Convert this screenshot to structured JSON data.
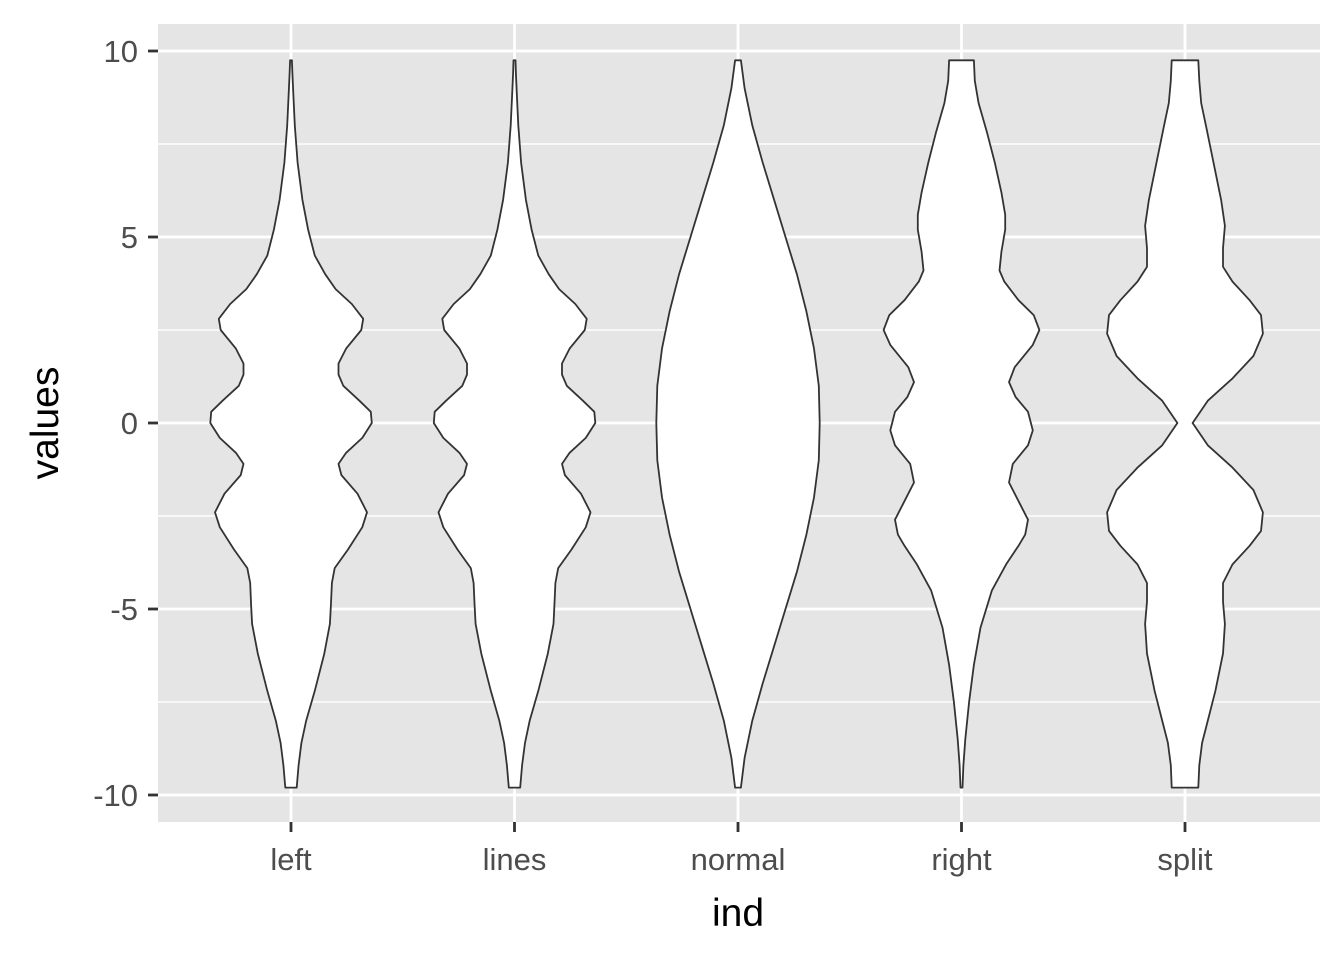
{
  "chart_data": {
    "type": "violin",
    "title": "",
    "xlabel": "ind",
    "ylabel": "values",
    "ylim": [
      -10.7,
      10.7
    ],
    "y_ticks": [
      -10,
      -5,
      0,
      5,
      10
    ],
    "y_tick_labels": [
      "-10",
      "-5",
      "0",
      "5",
      "10"
    ],
    "y_minor_ticks": [
      -7.5,
      -2.5,
      2.5,
      7.5
    ],
    "categories": [
      "left",
      "lines",
      "normal",
      "right",
      "split"
    ],
    "grid": true,
    "legend": "none",
    "colors": {
      "panel_background": "#e5e5e5",
      "grid": "#ffffff",
      "violin_fill": "#ffffff",
      "violin_outline": "#333333",
      "tick_label": "#4d4d4d",
      "axis_ticks": "#333333"
    },
    "series": [
      {
        "category": "left",
        "y_range": [
          -9.8,
          9.75
        ],
        "profile_y": [
          -9.8,
          -9.2,
          -8.6,
          -8,
          -7.2,
          -6.2,
          -5.4,
          -4.9,
          -4.3,
          -3.9,
          -3.4,
          -2.8,
          -2.4,
          -1.9,
          -1.4,
          -1.1,
          -0.8,
          -0.4,
          0,
          0.3,
          0.6,
          1,
          1.3,
          1.6,
          2,
          2.5,
          2.8,
          3.2,
          3.6,
          4,
          4.5,
          5.2,
          6,
          7,
          8,
          8.8,
          9.4,
          9.75
        ],
        "half_width": [
          0.06,
          0.08,
          0.11,
          0.16,
          0.25,
          0.35,
          0.41,
          0.42,
          0.43,
          0.46,
          0.6,
          0.75,
          0.8,
          0.7,
          0.53,
          0.5,
          0.58,
          0.75,
          0.85,
          0.84,
          0.72,
          0.55,
          0.5,
          0.5,
          0.58,
          0.74,
          0.76,
          0.64,
          0.47,
          0.36,
          0.25,
          0.18,
          0.12,
          0.07,
          0.04,
          0.025,
          0.015,
          0.01
        ]
      },
      {
        "category": "lines",
        "y_range": [
          -9.8,
          9.75
        ],
        "profile_y": [
          -9.8,
          -9.2,
          -8.6,
          -8,
          -7.2,
          -6.2,
          -5.4,
          -4.9,
          -4.3,
          -3.9,
          -3.4,
          -2.8,
          -2.4,
          -1.9,
          -1.4,
          -1.1,
          -0.8,
          -0.4,
          0,
          0.3,
          0.6,
          1,
          1.3,
          1.6,
          2,
          2.5,
          2.8,
          3.2,
          3.6,
          4,
          4.5,
          5.2,
          6,
          7,
          8,
          8.8,
          9.4,
          9.75
        ],
        "half_width": [
          0.06,
          0.08,
          0.11,
          0.16,
          0.25,
          0.35,
          0.41,
          0.42,
          0.43,
          0.46,
          0.6,
          0.75,
          0.8,
          0.7,
          0.53,
          0.5,
          0.58,
          0.75,
          0.85,
          0.84,
          0.72,
          0.55,
          0.5,
          0.5,
          0.58,
          0.74,
          0.76,
          0.64,
          0.47,
          0.36,
          0.25,
          0.18,
          0.12,
          0.07,
          0.04,
          0.025,
          0.015,
          0.01
        ]
      },
      {
        "category": "normal",
        "y_range": [
          -9.8,
          9.75
        ],
        "profile_y": [
          -9.8,
          -9,
          -8,
          -7,
          -6,
          -5,
          -4,
          -3,
          -2,
          -1,
          0,
          1,
          2,
          3,
          4,
          5,
          6,
          7,
          8,
          9,
          9.75
        ],
        "half_width": [
          0.03,
          0.07,
          0.15,
          0.26,
          0.38,
          0.5,
          0.62,
          0.72,
          0.8,
          0.85,
          0.86,
          0.85,
          0.8,
          0.72,
          0.62,
          0.5,
          0.38,
          0.26,
          0.15,
          0.07,
          0.03
        ]
      },
      {
        "category": "right",
        "y_range": [
          -9.8,
          9.75
        ],
        "profile_y": [
          -9.8,
          -9.2,
          -8.5,
          -7.5,
          -6.5,
          -5.5,
          -4.5,
          -3.8,
          -3.3,
          -3,
          -2.6,
          -2.2,
          -1.6,
          -1.1,
          -0.6,
          -0.2,
          0.3,
          0.7,
          1.1,
          1.5,
          2.1,
          2.5,
          2.9,
          3.3,
          3.8,
          4.1,
          4.6,
          5.2,
          5.6,
          6.2,
          7,
          7.8,
          8.6,
          9.2,
          9.75
        ],
        "half_width": [
          0.01,
          0.02,
          0.04,
          0.08,
          0.13,
          0.2,
          0.32,
          0.47,
          0.6,
          0.67,
          0.7,
          0.62,
          0.5,
          0.54,
          0.7,
          0.75,
          0.7,
          0.57,
          0.5,
          0.56,
          0.75,
          0.82,
          0.76,
          0.6,
          0.45,
          0.4,
          0.42,
          0.46,
          0.46,
          0.42,
          0.35,
          0.27,
          0.18,
          0.14,
          0.13
        ]
      },
      {
        "category": "split",
        "y_range": [
          -9.8,
          9.75
        ],
        "profile_y": [
          -9.8,
          -9.2,
          -8.6,
          -8,
          -7.2,
          -6.2,
          -5.4,
          -4.8,
          -4.3,
          -3.8,
          -3.3,
          -2.9,
          -2.4,
          -1.8,
          -1.2,
          -0.6,
          0,
          0.6,
          1.2,
          1.8,
          2.4,
          2.9,
          3.3,
          3.8,
          4.2,
          4.7,
          5.3,
          6,
          7,
          8,
          8.6,
          9.2,
          9.75
        ],
        "half_width": [
          0.14,
          0.15,
          0.18,
          0.24,
          0.32,
          0.4,
          0.42,
          0.4,
          0.4,
          0.5,
          0.68,
          0.8,
          0.82,
          0.72,
          0.5,
          0.24,
          0.08,
          0.24,
          0.5,
          0.72,
          0.82,
          0.8,
          0.68,
          0.5,
          0.4,
          0.4,
          0.42,
          0.38,
          0.3,
          0.22,
          0.17,
          0.15,
          0.14
        ]
      }
    ]
  }
}
